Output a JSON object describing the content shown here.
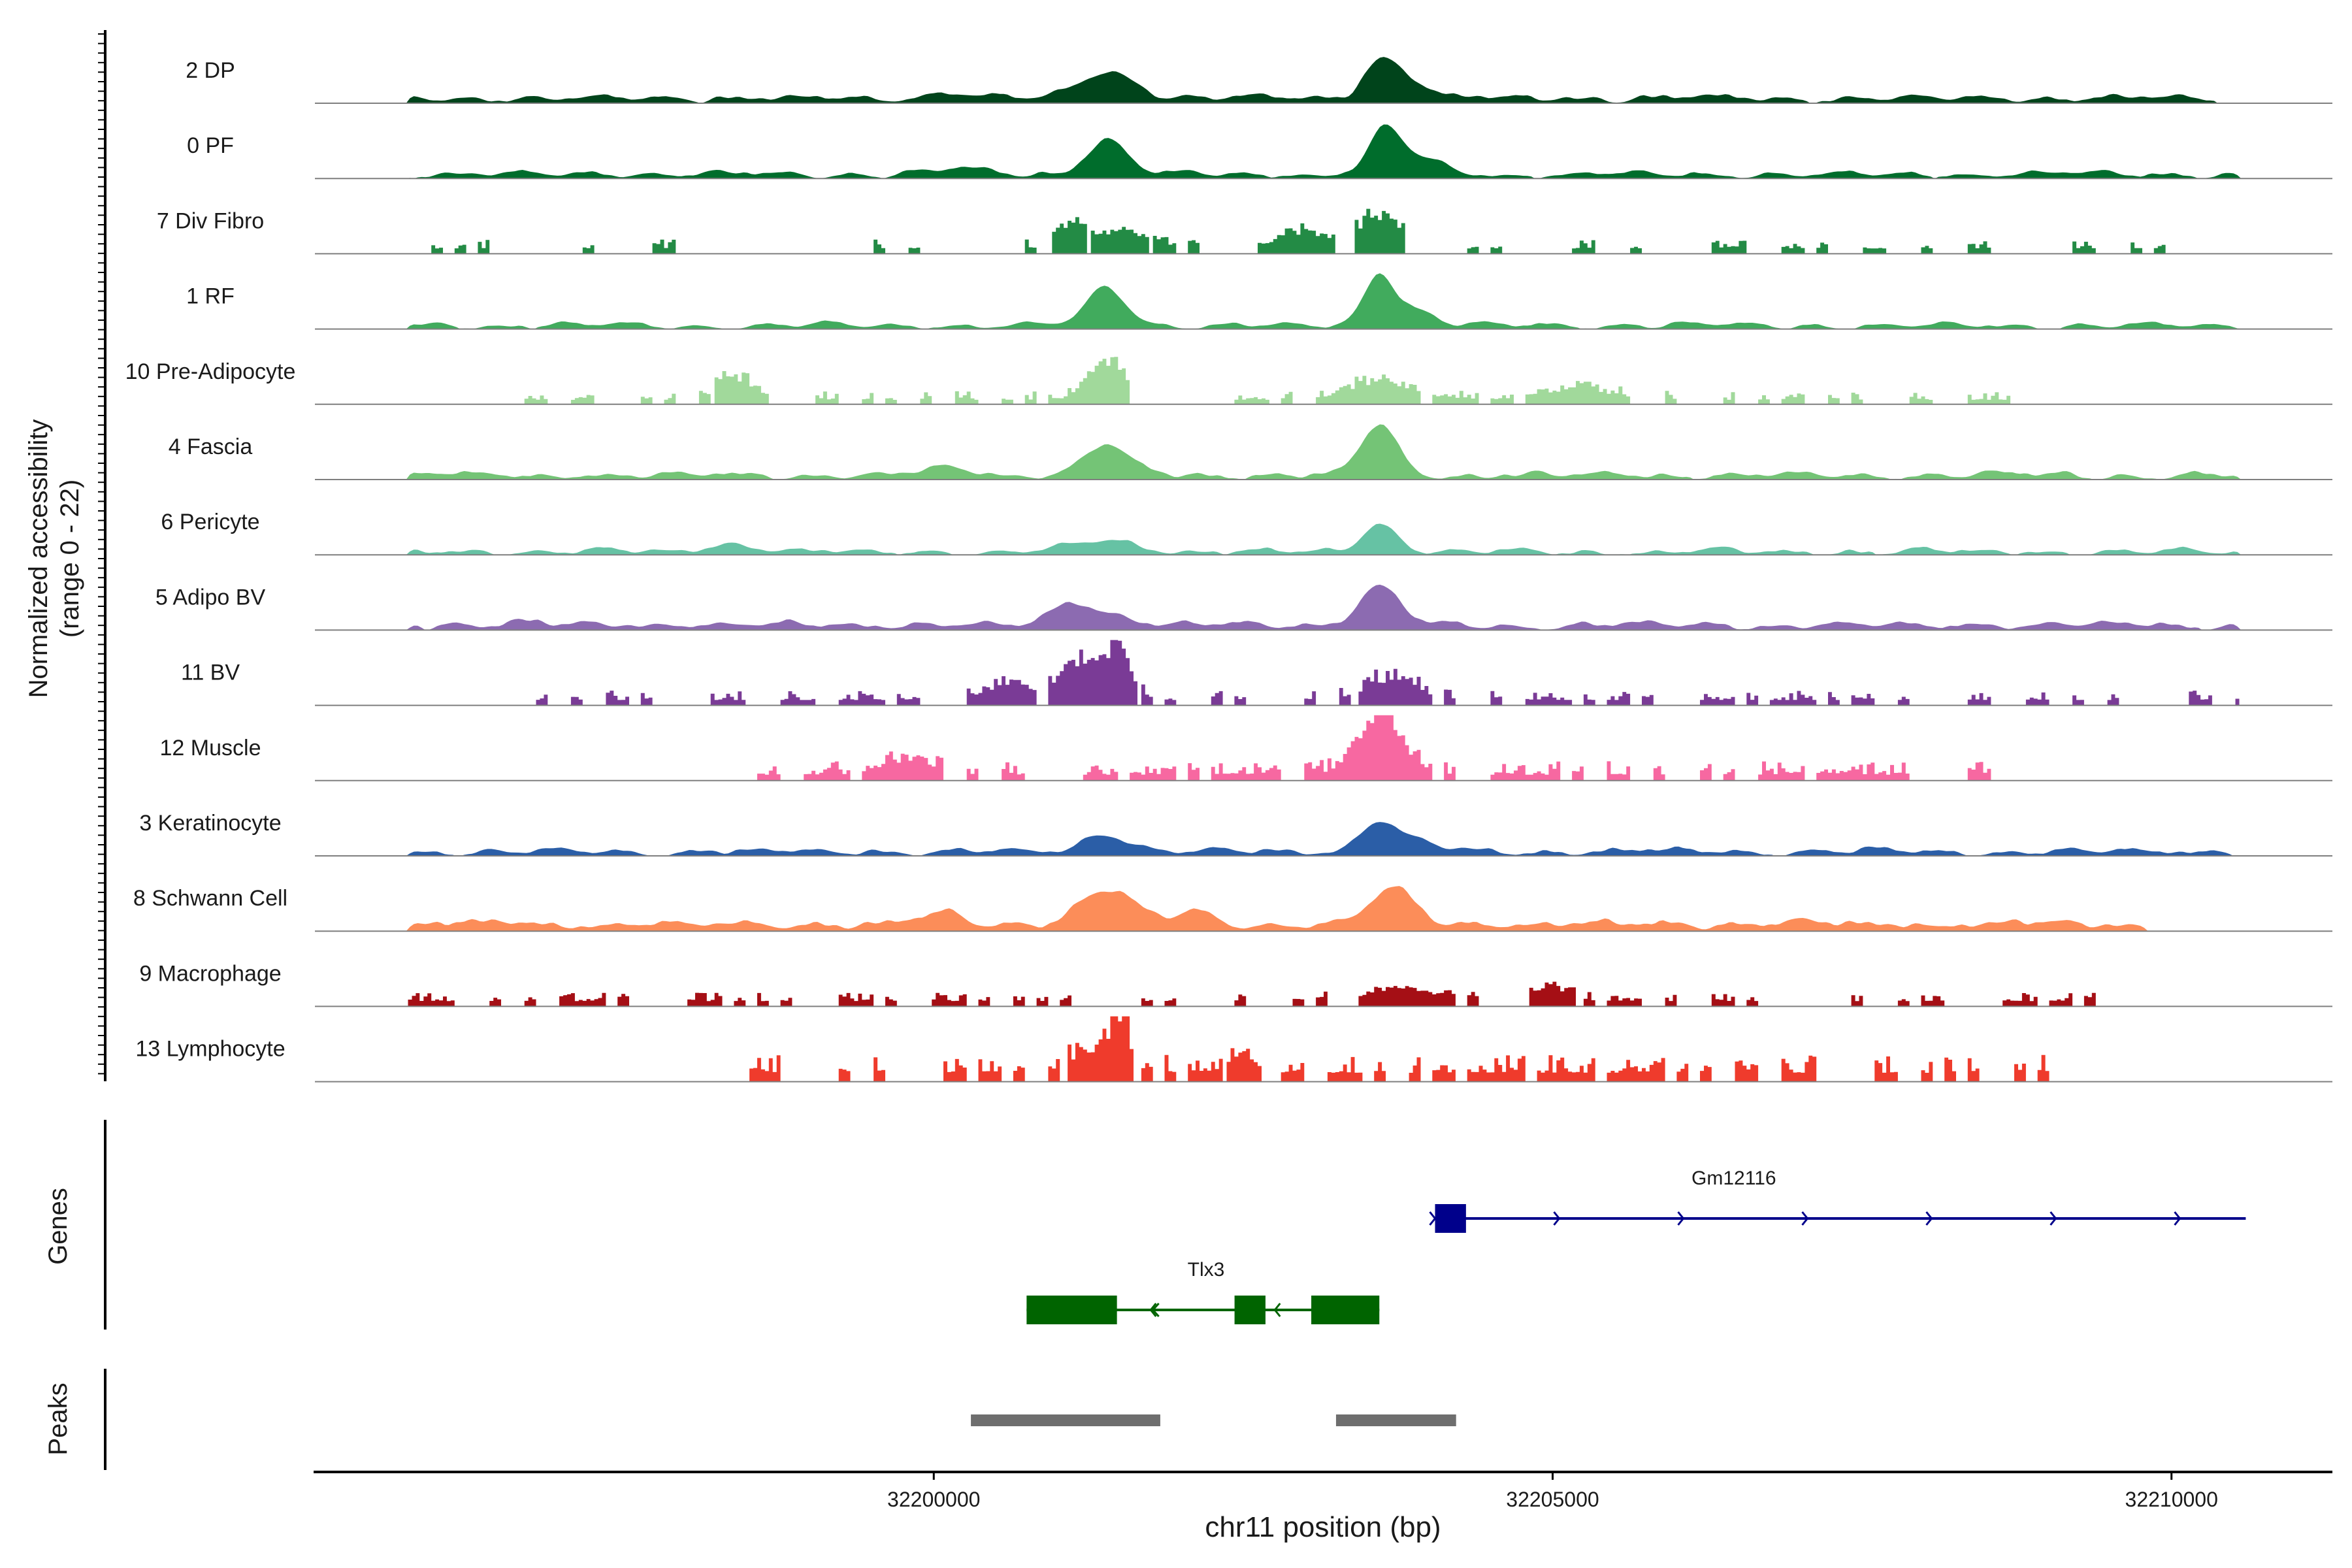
{
  "chart_data": {
    "type": "area",
    "chromosome": "chr11",
    "xlabel": "chr11 position (bp)",
    "ylabel_line1": "Normalized accessibility",
    "ylabel_line2": "(range 0 - 22)",
    "ylim": [
      0,
      22
    ],
    "xlim": [
      32195000,
      32211300
    ],
    "xticks": [
      32200000,
      32205000,
      32210000
    ],
    "xtick_labels": [
      "32200000",
      "32205000",
      "32210000"
    ],
    "genes_label": "Genes",
    "peaks_label": "Peaks",
    "tracks": [
      {
        "name": "2 DP",
        "color": "#00441b",
        "x_start": 32195750,
        "x_end": 32210350,
        "shape": "smooth",
        "density": 1.0,
        "baseline": 1.2,
        "noise": 1.8,
        "peaks": [
          [
            32201400,
            9,
            300
          ],
          [
            32203600,
            13,
            180
          ],
          [
            32203850,
            6,
            200
          ],
          [
            32200150,
            2.5,
            250
          ]
        ]
      },
      {
        "name": "0 PF",
        "color": "#006d2c",
        "x_start": 32195750,
        "x_end": 32210550,
        "shape": "smooth",
        "density": 1.0,
        "baseline": 1.0,
        "noise": 1.6,
        "peaks": [
          [
            32201400,
            12,
            230
          ],
          [
            32203650,
            15,
            180
          ],
          [
            32203950,
            5,
            250
          ],
          [
            32200200,
            2.0,
            250
          ]
        ]
      },
      {
        "name": "7 Div Fibro",
        "color": "#238b45",
        "x_start": 32195750,
        "x_end": 32210200,
        "shape": "blocky",
        "density": 0.32,
        "baseline": 1.8,
        "noise": 3.0,
        "peaks": [
          [
            32201100,
            8,
            150
          ],
          [
            32201500,
            6,
            260
          ],
          [
            32203000,
            6,
            260
          ],
          [
            32203600,
            11,
            230
          ]
        ]
      },
      {
        "name": "1 RF",
        "color": "#41ab5d",
        "x_start": 32195750,
        "x_end": 32210550,
        "shape": "smooth",
        "density": 1.0,
        "baseline": 0.8,
        "noise": 1.5,
        "peaks": [
          [
            32201400,
            13,
            220
          ],
          [
            32203600,
            18,
            170
          ],
          [
            32203900,
            5,
            200
          ]
        ]
      },
      {
        "name": "10 Pre-Adipocyte",
        "color": "#a1d99b",
        "x_start": 32196400,
        "x_end": 32208700,
        "shape": "blocky",
        "density": 0.42,
        "baseline": 1.5,
        "noise": 3.0,
        "peaks": [
          [
            32201400,
            13,
            200
          ],
          [
            32198400,
            8,
            200
          ],
          [
            32203600,
            6,
            350
          ],
          [
            32205200,
            4,
            400
          ]
        ]
      },
      {
        "name": "4 Fascia",
        "color": "#74c476",
        "x_start": 32195750,
        "x_end": 32210550,
        "shape": "smooth",
        "density": 1.0,
        "baseline": 1.0,
        "noise": 1.8,
        "peaks": [
          [
            32201400,
            10,
            250
          ],
          [
            32203600,
            17,
            200
          ],
          [
            32200150,
            3,
            250
          ]
        ]
      },
      {
        "name": "6 Pericyte",
        "color": "#66c2a4",
        "x_start": 32195750,
        "x_end": 32210550,
        "shape": "smooth",
        "density": 1.0,
        "baseline": 0.6,
        "noise": 1.6,
        "peaks": [
          [
            32203600,
            10,
            200
          ],
          [
            32201400,
            4,
            350
          ],
          [
            32198400,
            2.5,
            300
          ]
        ]
      },
      {
        "name": "5 Adipo BV",
        "color": "#8c6bb1",
        "x_start": 32195750,
        "x_end": 32210550,
        "shape": "smooth",
        "density": 1.0,
        "baseline": 1.2,
        "noise": 2.0,
        "peaks": [
          [
            32203600,
            13,
            220
          ],
          [
            32201100,
            7,
            200
          ],
          [
            32201400,
            4,
            250
          ]
        ]
      },
      {
        "name": "11 BV",
        "color": "#7a3b96",
        "x_start": 32196800,
        "x_end": 32210550,
        "shape": "blocky",
        "density": 0.48,
        "baseline": 1.8,
        "noise": 3.2,
        "peaks": [
          [
            32201200,
            12,
            250
          ],
          [
            32201500,
            14,
            150
          ],
          [
            32203700,
            7,
            300
          ],
          [
            32200600,
            5,
            250
          ]
        ]
      },
      {
        "name": "12 Muscle",
        "color": "#f768a1",
        "x_start": 32198100,
        "x_end": 32208600,
        "shape": "blocky",
        "density": 0.5,
        "baseline": 2.0,
        "noise": 4.5,
        "peaks": [
          [
            32203600,
            19,
            250
          ],
          [
            32199800,
            5,
            300
          ]
        ]
      },
      {
        "name": "3 Keratinocyte",
        "color": "#2b5ea7",
        "x_start": 32195750,
        "x_end": 32210550,
        "shape": "smooth",
        "density": 1.0,
        "baseline": 1.0,
        "noise": 1.8,
        "peaks": [
          [
            32203600,
            11,
            200
          ],
          [
            32201400,
            6,
            250
          ],
          [
            32203950,
            3,
            200
          ]
        ]
      },
      {
        "name": "8 Schwann Cell",
        "color": "#fc8d59",
        "x_start": 32195750,
        "x_end": 32209800,
        "shape": "smooth",
        "density": 0.9,
        "baseline": 1.6,
        "noise": 2.6,
        "peaks": [
          [
            32201400,
            12,
            300
          ],
          [
            32203700,
            12,
            250
          ],
          [
            32202100,
            4,
            200
          ],
          [
            32200100,
            4,
            200
          ]
        ]
      },
      {
        "name": "9 Macrophage",
        "color": "#a50f15",
        "x_start": 32195750,
        "x_end": 32209500,
        "shape": "blocky",
        "density": 0.4,
        "baseline": 1.8,
        "noise": 2.8,
        "peaks": [
          [
            32203800,
            4,
            400
          ],
          [
            32205000,
            5,
            200
          ]
        ]
      },
      {
        "name": "13 Lymphocyte",
        "color": "#ef3b2c",
        "x_start": 32198500,
        "x_end": 32209000,
        "shape": "blocky",
        "density": 0.42,
        "baseline": 3.0,
        "noise": 6.0,
        "peaks": [
          [
            32201500,
            18,
            120
          ],
          [
            32201250,
            6,
            200
          ],
          [
            32202500,
            5,
            150
          ]
        ]
      }
    ],
    "genes": [
      {
        "name": "Gm12116",
        "strand": "+",
        "color": "#00008b",
        "start": 32204050,
        "end": 32210600,
        "exons": [
          [
            32204050,
            32204300
          ]
        ]
      },
      {
        "name": "Tlx3",
        "strand": "-",
        "color": "#006400",
        "start": 32200750,
        "end": 32203600,
        "exons": [
          [
            32200750,
            32201480
          ],
          [
            32202430,
            32202680
          ],
          [
            32203050,
            32203600
          ]
        ]
      }
    ],
    "peaks": [
      {
        "start": 32200300,
        "end": 32201830
      },
      {
        "start": 32203250,
        "end": 32204220
      }
    ]
  }
}
